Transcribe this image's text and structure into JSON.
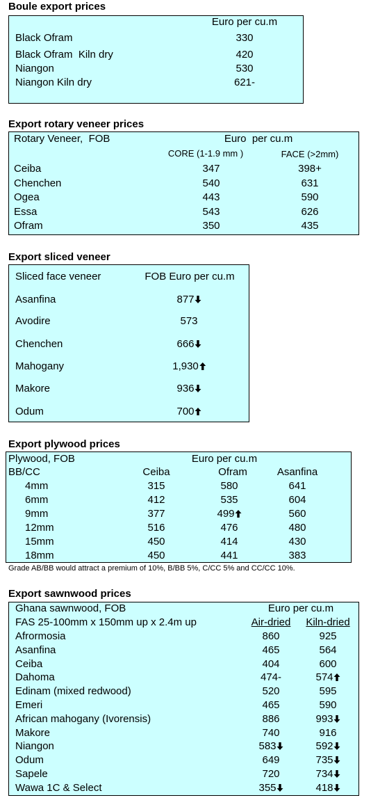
{
  "boule": {
    "title": "Boule export prices",
    "header": "Euro per cu.m",
    "rows": [
      [
        "Black Ofram",
        "330"
      ],
      [
        "Black Ofram  Kiln dry",
        "420"
      ],
      [
        "Niangon",
        "530"
      ],
      [
        "Niangon Kiln dry",
        "621-"
      ]
    ]
  },
  "rotary": {
    "title": "Export rotary veneer prices",
    "header": [
      "Rotary Veneer,  FOB",
      "Euro  per cu.m"
    ],
    "subheader": [
      "CORE (1-1.9 mm )",
      "FACE (>2mm)"
    ],
    "rows": [
      [
        "Ceiba",
        "347",
        "398+"
      ],
      [
        "Chenchen",
        "540",
        "631"
      ],
      [
        "Ogea",
        "443",
        "590"
      ],
      [
        "Essa",
        "543",
        "626"
      ],
      [
        "Ofram",
        "350",
        "435"
      ]
    ]
  },
  "sliced": {
    "title": "Export sliced veneer",
    "header": [
      "Sliced face veneer",
      "FOB Euro per cu.m"
    ],
    "rows": [
      [
        "Asanfina",
        "877"
      ],
      [
        "Avodire",
        "573"
      ],
      [
        "Chenchen",
        "666"
      ],
      [
        "Mahogany",
        "1,930"
      ],
      [
        "Makore",
        "936"
      ],
      [
        "Odum",
        "700"
      ]
    ]
  },
  "plywood": {
    "title": "Export plywood prices",
    "header": [
      "Plywood, FOB",
      "Euro per cu.m"
    ],
    "subheader": [
      "BB/CC",
      "Ceiba",
      "Ofram",
      "Asanfina"
    ],
    "rows": [
      [
        "4mm",
        "315",
        "580",
        "641"
      ],
      [
        "6mm",
        "412",
        "535",
        "604"
      ],
      [
        "9mm",
        "377",
        "499",
        "560"
      ],
      [
        "12mm",
        "516",
        "476",
        "480"
      ],
      [
        "15mm",
        "450",
        "414",
        "430"
      ],
      [
        "18mm",
        "450",
        "441",
        "383"
      ]
    ],
    "note": "Grade AB/BB would attract a premium of 10%, B/BB 5%, C/CC 5% and CC/CC 10%."
  },
  "sawnwood": {
    "title": "Export sawnwood prices",
    "header": [
      "Ghana sawnwood, FOB",
      "Euro per cu.m"
    ],
    "subheader": [
      "FAS 25-100mm x 150mm up x 2.4m up",
      "Air-dried",
      "Kiln-dried"
    ],
    "rows": [
      [
        "Afrormosia",
        "860",
        "925"
      ],
      [
        "Asanfina",
        "465",
        "564"
      ],
      [
        "Ceiba",
        "404",
        "600"
      ],
      [
        "Dahoma",
        "474-",
        "574"
      ],
      [
        "Edinam (mixed redwood)",
        "520",
        "595"
      ],
      [
        "Emeri",
        "465",
        "590"
      ],
      [
        "African mahogany (Ivorensis)",
        "886",
        "993"
      ],
      [
        "Makore",
        "740",
        "916"
      ],
      [
        "Niangon",
        "583",
        "592"
      ],
      [
        "Odum",
        "649",
        "735"
      ],
      [
        "Sapele",
        "720",
        "734"
      ],
      [
        "Wawa 1C & Select",
        "355",
        "418"
      ]
    ]
  }
}
